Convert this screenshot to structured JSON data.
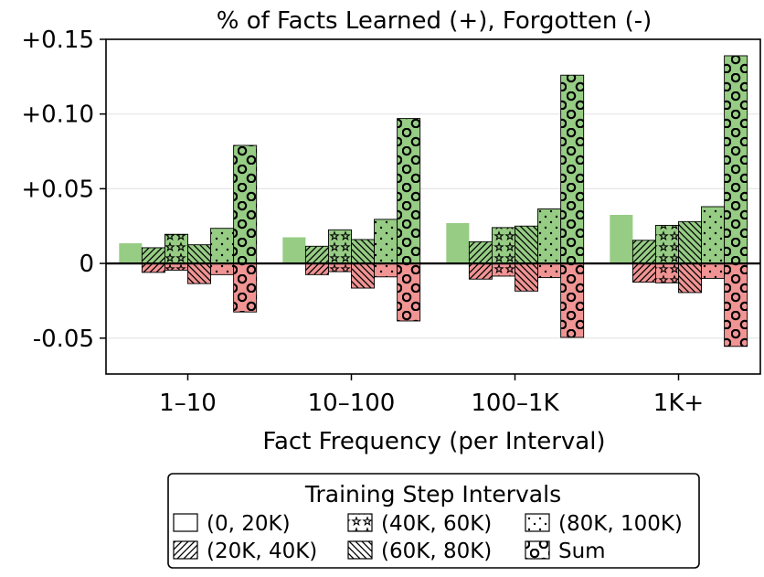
{
  "chart_data": {
    "type": "bar",
    "title": "% of Facts Learned (+), Forgotten (-)",
    "xlabel": "Fact Frequency (per Interval)",
    "ylabel": "",
    "ylim": [
      -0.074,
      0.15
    ],
    "yticks": [
      {
        "value": 0.15,
        "label": "+0.15"
      },
      {
        "value": 0.1,
        "label": "+0.10"
      },
      {
        "value": 0.05,
        "label": "+0.05"
      },
      {
        "value": 0.0,
        "label": "0"
      },
      {
        "value": -0.05,
        "label": "-0.05"
      }
    ],
    "categories": [
      "1–10",
      "10–100",
      "100–1K",
      "1K+"
    ],
    "series": [
      {
        "name": "(0, 20K)",
        "pattern": "none",
        "learned": [
          0.0135,
          0.0175,
          0.027,
          0.0325
        ],
        "forgotten": [
          0.0,
          0.0,
          0.0,
          0.0
        ]
      },
      {
        "name": "(20K, 40K)",
        "pattern": "diag",
        "learned": [
          0.0105,
          0.0115,
          0.0145,
          0.0155
        ],
        "forgotten": [
          -0.006,
          -0.0075,
          -0.0105,
          -0.0125
        ]
      },
      {
        "name": "(40K, 60K)",
        "pattern": "star",
        "learned": [
          0.0195,
          0.0225,
          0.024,
          0.0255
        ],
        "forgotten": [
          -0.0045,
          -0.0055,
          -0.0085,
          -0.013
        ]
      },
      {
        "name": "(60K, 80K)",
        "pattern": "backdiag",
        "learned": [
          0.0125,
          0.016,
          0.025,
          0.028
        ],
        "forgotten": [
          -0.0135,
          -0.0165,
          -0.0185,
          -0.0195
        ]
      },
      {
        "name": "(80K, 100K)",
        "pattern": "dot",
        "learned": [
          0.0235,
          0.0295,
          0.0365,
          0.038
        ],
        "forgotten": [
          -0.0075,
          -0.009,
          -0.0095,
          -0.01
        ]
      },
      {
        "name": "Sum",
        "pattern": "circle",
        "learned": [
          0.079,
          0.097,
          0.126,
          0.139
        ],
        "forgotten": [
          -0.0325,
          -0.0385,
          -0.0495,
          -0.0555
        ]
      }
    ],
    "colors": {
      "learned": "#96cc84",
      "forgotten": "#f09494"
    },
    "legend": {
      "title": "Training Step Intervals",
      "placement": "bottom-center"
    }
  }
}
